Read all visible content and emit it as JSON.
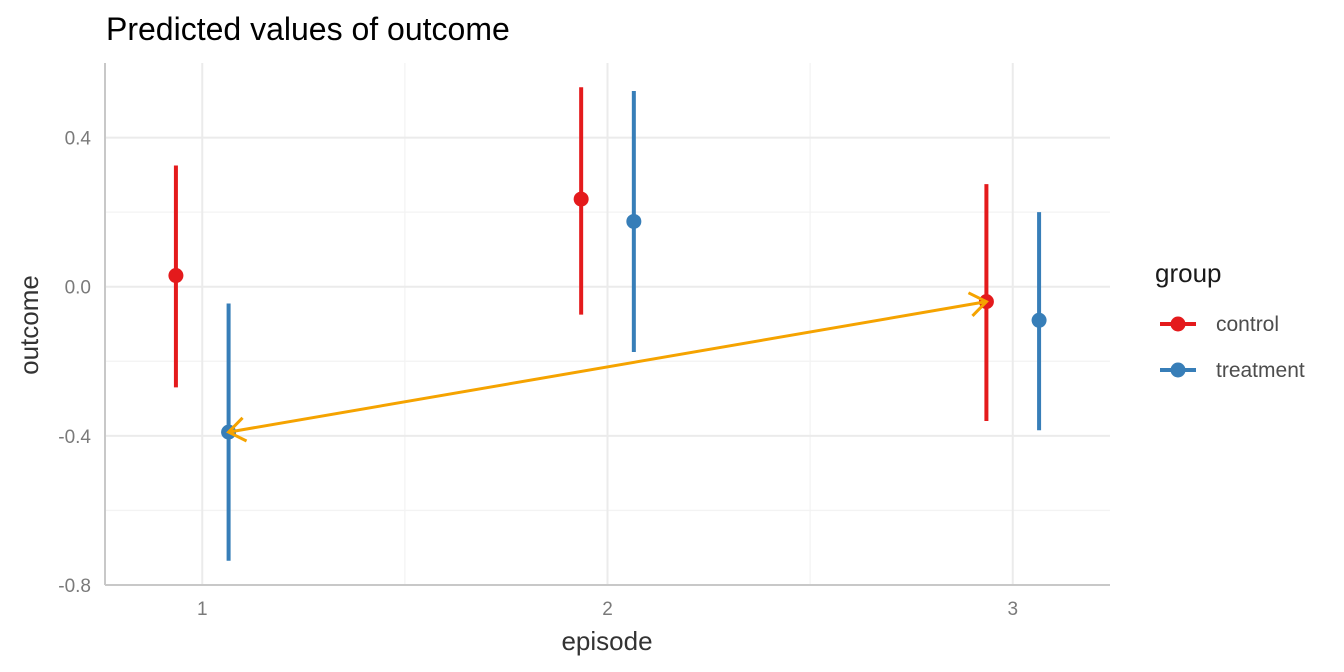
{
  "chart_data": {
    "type": "scatter",
    "title": "Predicted values of outcome",
    "xlabel": "episode",
    "ylabel": "outcome",
    "categories": [
      "1",
      "2",
      "3"
    ],
    "x_ticks": [
      "1",
      "2",
      "3"
    ],
    "y_ticks": [
      -0.8,
      -0.4,
      0.0,
      0.4
    ],
    "y_tick_labels": [
      "-0.8",
      "-0.4",
      "0.0",
      "0.4"
    ],
    "xlim": [
      0.76,
      3.24
    ],
    "ylim": [
      -0.8,
      0.6
    ],
    "grid": true,
    "legend": {
      "title": "group",
      "position": "right",
      "entries": [
        "control",
        "treatment"
      ]
    },
    "series": [
      {
        "name": "control",
        "color": "#e41a1c",
        "dodge": -0.065,
        "points": [
          {
            "x": 1,
            "y": 0.03,
            "low": -0.27,
            "high": 0.325
          },
          {
            "x": 2,
            "y": 0.235,
            "low": -0.075,
            "high": 0.535
          },
          {
            "x": 3,
            "y": -0.04,
            "low": -0.36,
            "high": 0.275
          }
        ]
      },
      {
        "name": "treatment",
        "color": "#377eb8",
        "dodge": 0.065,
        "points": [
          {
            "x": 1,
            "y": -0.39,
            "low": -0.735,
            "high": -0.045
          },
          {
            "x": 2,
            "y": 0.175,
            "low": -0.175,
            "high": 0.525
          },
          {
            "x": 3,
            "y": -0.09,
            "low": -0.385,
            "high": 0.2
          }
        ]
      }
    ],
    "annotations": [
      {
        "type": "double-arrow",
        "color": "#f5a300",
        "from": {
          "x": 1.065,
          "y": -0.39
        },
        "to": {
          "x": 2.935,
          "y": -0.04
        }
      }
    ]
  }
}
